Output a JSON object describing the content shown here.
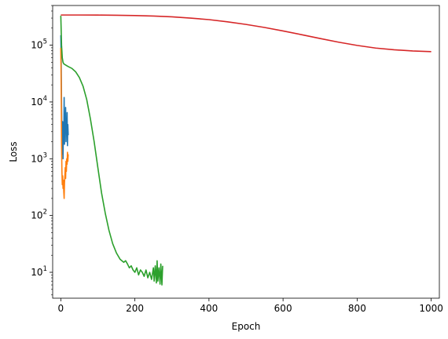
{
  "chart_data": {
    "type": "line",
    "title": "",
    "xlabel": "Epoch",
    "ylabel": "Loss",
    "xlim": [
      -22,
      1022
    ],
    "ylim": [
      3.5,
      500000
    ],
    "yscale": "log",
    "grid": false,
    "x_ticks": [
      0,
      200,
      400,
      600,
      800,
      1000
    ],
    "x_tick_labels": [
      "0",
      "200",
      "400",
      "600",
      "800",
      "1000"
    ],
    "y_ticks": [
      10,
      100,
      1000,
      10000,
      100000
    ],
    "y_tick_labels": [
      "10^1",
      "10^2",
      "10^3",
      "10^4",
      "10^5"
    ],
    "series": [
      {
        "color": "#1f77b4",
        "x": [
          0,
          1,
          2,
          3,
          4,
          5,
          6,
          7,
          8,
          9,
          10,
          11,
          12,
          13,
          14,
          15,
          16,
          17,
          18,
          19,
          20
        ],
        "y": [
          150000,
          60000,
          9000,
          2500,
          1200,
          4500,
          1000,
          3500,
          2000,
          12000,
          1800,
          6000,
          3000,
          8000,
          2000,
          5000,
          2800,
          6500,
          1700,
          4000,
          2600
        ]
      },
      {
        "color": "#ff7f0e",
        "x": [
          0,
          1,
          2,
          3,
          4,
          5,
          6,
          7,
          8,
          9,
          10,
          11,
          12,
          13,
          14,
          15,
          16,
          17,
          18,
          19,
          20
        ],
        "y": [
          90000,
          20000,
          2000,
          600,
          350,
          500,
          300,
          420,
          260,
          200,
          380,
          500,
          700,
          450,
          900,
          600,
          1000,
          800,
          1300,
          900,
          1200
        ]
      },
      {
        "color": "#2ca02c",
        "x": [
          0,
          2,
          4,
          6,
          8,
          10,
          15,
          20,
          30,
          40,
          50,
          60,
          70,
          80,
          90,
          100,
          110,
          120,
          130,
          140,
          150,
          160,
          170,
          175,
          180,
          185,
          190,
          195,
          200,
          205,
          210,
          215,
          220,
          225,
          230,
          235,
          240,
          245,
          250,
          252,
          255,
          258,
          260,
          262,
          265,
          268,
          270,
          273,
          275
        ],
        "y": [
          330000,
          100000,
          60000,
          50000,
          47000,
          46000,
          44000,
          42000,
          39000,
          34000,
          27000,
          19000,
          11000,
          5000,
          2000,
          700,
          250,
          110,
          55,
          32,
          22,
          17,
          15,
          16,
          14,
          12,
          13,
          11,
          10,
          12,
          9,
          11,
          10,
          8.5,
          11,
          8,
          10,
          7.5,
          12,
          7,
          13,
          6.5,
          16,
          7,
          12,
          6.2,
          14,
          6,
          13
        ]
      },
      {
        "color": "#d62728",
        "x": [
          0,
          50,
          100,
          150,
          200,
          250,
          300,
          350,
          400,
          450,
          500,
          550,
          600,
          650,
          700,
          750,
          800,
          850,
          900,
          950,
          1000
        ],
        "y": [
          340000,
          340000,
          339000,
          337000,
          333000,
          326000,
          316000,
          300000,
          282000,
          258000,
          232000,
          205000,
          178000,
          153000,
          131000,
          113000,
          99000,
          89000,
          83000,
          79000,
          77000
        ]
      }
    ]
  }
}
